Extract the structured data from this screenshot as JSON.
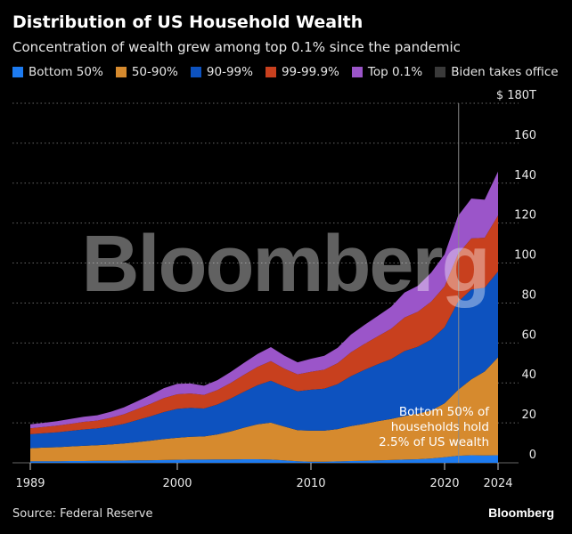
{
  "header": {
    "title": "Distribution of US Household Wealth",
    "subtitle": "Concentration of wealth grew among top 0.1% since the pandemic"
  },
  "footer": {
    "source": "Source: Federal Reserve",
    "brand": "Bloomberg"
  },
  "watermark": "Bloomberg",
  "colors": {
    "bottom50": "#1d7bf0",
    "p50_90": "#d68a2e",
    "p90_99": "#0d52bf",
    "p99_999": "#c8401e",
    "top01": "#9b55c9",
    "biden": "#3a3a3a",
    "grid": "#666666"
  },
  "chart_data": {
    "type": "area",
    "stacked": true,
    "title": "Distribution of US Household Wealth",
    "subtitle": "Concentration of wealth grew among top 0.1% since the pandemic",
    "ylim": [
      0,
      180
    ],
    "ytick_values": [
      0,
      20,
      40,
      60,
      80,
      100,
      120,
      140,
      160,
      180
    ],
    "ytick_labels": [
      "0",
      "20",
      "40",
      "60",
      "80",
      "100",
      "120",
      "140",
      "160",
      "$ 180T"
    ],
    "xlim": [
      1989,
      2024
    ],
    "xtick_values": [
      1989,
      2000,
      2010,
      2020,
      2024
    ],
    "xtick_labels": [
      "1989",
      "2000",
      "2010",
      "2020",
      "2024"
    ],
    "grid": true,
    "legend_position": "top",
    "x": [
      1989,
      1990,
      1991,
      1992,
      1993,
      1994,
      1995,
      1996,
      1997,
      1998,
      1999,
      2000,
      2001,
      2002,
      2003,
      2004,
      2005,
      2006,
      2007,
      2008,
      2009,
      2010,
      2011,
      2012,
      2013,
      2014,
      2015,
      2016,
      2017,
      2018,
      2019,
      2020,
      2021,
      2022,
      2023,
      2024
    ],
    "series": [
      {
        "name": "Bottom 50%",
        "color_key": "bottom50",
        "values": [
          0.8,
          0.8,
          0.8,
          0.9,
          0.9,
          1.0,
          1.0,
          1.1,
          1.2,
          1.3,
          1.4,
          1.5,
          1.6,
          1.6,
          1.7,
          1.7,
          1.8,
          1.8,
          1.6,
          1.2,
          0.8,
          0.6,
          0.6,
          0.7,
          0.9,
          1.0,
          1.2,
          1.4,
          1.6,
          1.8,
          2.2,
          2.8,
          3.5,
          3.8,
          3.7,
          3.8
        ]
      },
      {
        "name": "50-90%",
        "color_key": "p50_90",
        "values": [
          6.5,
          6.8,
          7.0,
          7.3,
          7.6,
          7.8,
          8.2,
          8.6,
          9.2,
          9.8,
          10.5,
          11.0,
          11.4,
          11.6,
          12.5,
          14.0,
          15.8,
          17.5,
          18.5,
          17.0,
          15.5,
          15.5,
          15.5,
          16.2,
          17.5,
          18.5,
          19.6,
          20.5,
          21.8,
          22.8,
          24.0,
          27.0,
          33.0,
          38.0,
          42.0,
          49.0
        ]
      },
      {
        "name": "90-99%",
        "color_key": "p90_99",
        "values": [
          7.0,
          7.2,
          7.5,
          7.8,
          8.2,
          8.4,
          9.0,
          9.8,
          11.0,
          12.2,
          13.5,
          14.5,
          14.5,
          14.0,
          15.0,
          16.5,
          18.0,
          19.5,
          21.0,
          20.0,
          19.5,
          20.5,
          21.0,
          22.5,
          25.0,
          27.0,
          28.5,
          30.0,
          32.5,
          33.5,
          35.5,
          38.0,
          44.0,
          45.0,
          42.0,
          43.0
        ]
      },
      {
        "name": "99-99.9%",
        "color_key": "p99_999",
        "values": [
          3.0,
          3.1,
          3.3,
          3.5,
          3.8,
          3.9,
          4.3,
          4.8,
          5.5,
          6.2,
          7.0,
          7.3,
          7.2,
          6.8,
          7.2,
          7.8,
          8.5,
          9.2,
          9.8,
          9.0,
          8.5,
          9.0,
          9.5,
          10.5,
          12.0,
          13.0,
          14.0,
          15.2,
          16.8,
          17.5,
          19.0,
          20.5,
          24.0,
          25.5,
          25.0,
          28.0
        ]
      },
      {
        "name": "Top 0.1%",
        "color_key": "top01",
        "values": [
          2.0,
          2.1,
          2.2,
          2.4,
          2.6,
          2.7,
          3.0,
          3.4,
          3.9,
          4.4,
          5.0,
          5.2,
          5.0,
          4.6,
          5.0,
          5.5,
          6.0,
          6.5,
          7.0,
          6.5,
          6.0,
          6.5,
          7.0,
          7.7,
          8.8,
          9.5,
          10.2,
          11.0,
          12.5,
          13.0,
          14.5,
          16.0,
          19.0,
          20.0,
          19.0,
          22.0
        ]
      }
    ],
    "biden_line": {
      "name": "Biden takes office",
      "x": 2021.05
    },
    "annotation": {
      "lines": [
        "Bottom 50% of",
        "households hold",
        "2.5% of US wealth"
      ]
    }
  }
}
